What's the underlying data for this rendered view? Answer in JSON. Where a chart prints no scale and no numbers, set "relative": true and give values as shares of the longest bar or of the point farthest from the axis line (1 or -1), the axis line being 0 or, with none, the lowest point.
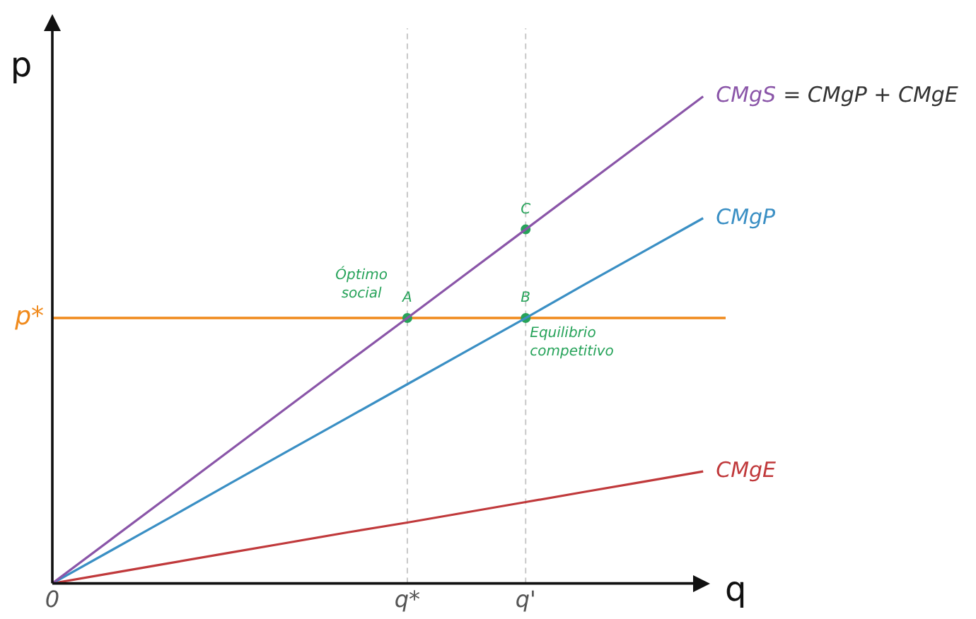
{
  "chart_data": {
    "type": "line",
    "relative": true,
    "xlabel": "q",
    "ylabel": "p",
    "categories": [
      "0",
      null,
      null,
      null,
      null,
      null,
      "q*",
      null,
      "q'",
      null,
      null,
      null
    ],
    "series": [
      {
        "name": "CMgS",
        "color": "#8a55a8",
        "values": [
          0,
          0.091,
          0.182,
          0.273,
          0.364,
          0.455,
          0.545,
          0.636,
          0.727,
          0.818,
          0.909,
          1
        ]
      },
      {
        "name": "CMgP",
        "color": "#3a8fc4",
        "values": [
          0,
          0.068,
          0.136,
          0.205,
          0.273,
          0.341,
          0.409,
          0.477,
          0.545,
          0.614,
          0.682,
          0.75
        ]
      },
      {
        "name": "CMgE",
        "color": "#c0393b",
        "values": [
          0,
          0.021,
          0.042,
          0.063,
          0.084,
          0.105,
          0.125,
          0.146,
          0.167,
          0.188,
          0.209,
          0.23
        ]
      },
      {
        "type": "scatter",
        "marker": "circle",
        "color": "#27a35a",
        "x": [
          "q*",
          "q'",
          "q'"
        ],
        "values": [
          0.545,
          0.545,
          0.727
        ]
      }
    ],
    "ref_lines": [
      {
        "axis": "y",
        "value": 0.545,
        "label": "p*",
        "color": "#f08a1c"
      },
      {
        "axis": "x",
        "value": "q*",
        "color": "#c8c8c8",
        "line_style": "dashed"
      },
      {
        "axis": "x",
        "value": "q'",
        "color": "#c8c8c8",
        "line_style": "dashed"
      }
    ],
    "annotations": [
      {
        "text": "A",
        "x": "q*",
        "y": 0.545
      },
      {
        "text": "B",
        "x": "q'",
        "y": 0.545
      },
      {
        "text": "C",
        "x": "q'",
        "y": 0.727
      },
      {
        "text": "Óptimo social",
        "x": "q*",
        "y": 0.545
      },
      {
        "text": "Equilibrio competitivo",
        "x": "q'",
        "y": 0.545
      },
      "= CMgP + CMgE"
    ],
    "grid": false,
    "legend": false,
    "line_style": "solid"
  }
}
